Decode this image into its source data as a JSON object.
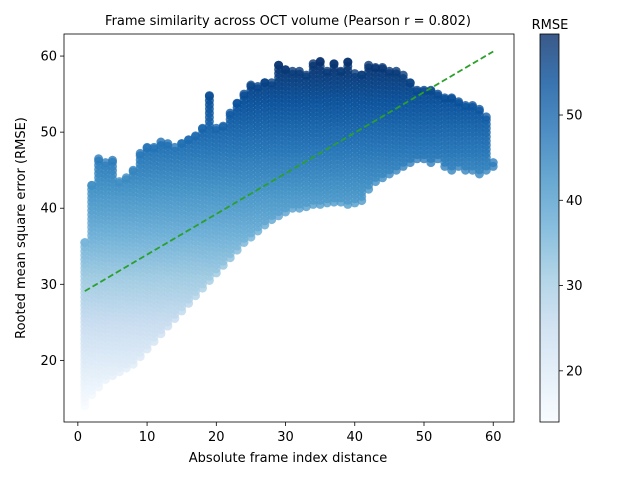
{
  "chart_data": {
    "type": "scatter",
    "title": "Frame similarity across OCT volume (Pearson r = 0.802)",
    "xlabel": "Absolute frame index distance",
    "ylabel": "Rooted mean square error (RMSE)",
    "xlim": [
      -2.0,
      63.0
    ],
    "ylim": [
      11.9,
      62.9
    ],
    "xticks": [
      0,
      10,
      20,
      30,
      40,
      50,
      60
    ],
    "yticks": [
      20,
      30,
      40,
      50,
      60
    ],
    "grid": false,
    "colormap": "Blues",
    "color_range": [
      14.0,
      59.5
    ],
    "colorbar": {
      "label": "RMSE",
      "ticks": [
        20,
        30,
        40,
        50
      ]
    },
    "point_alpha": 0.8,
    "x_range": [
      1,
      60
    ],
    "point_bands": [
      {
        "x": 1,
        "min": 14,
        "max": 35.5
      },
      {
        "x": 2,
        "min": 15.5,
        "max": 43
      },
      {
        "x": 3,
        "min": 16.5,
        "max": 46.5
      },
      {
        "x": 4,
        "min": 17.5,
        "max": 46
      },
      {
        "x": 5,
        "min": 18,
        "max": 46.3
      },
      {
        "x": 6,
        "min": 18.5,
        "max": 43.5
      },
      {
        "x": 7,
        "min": 19,
        "max": 44
      },
      {
        "x": 8,
        "min": 19.5,
        "max": 45
      },
      {
        "x": 9,
        "min": 20.5,
        "max": 47.2
      },
      {
        "x": 10,
        "min": 21.5,
        "max": 48
      },
      {
        "x": 11,
        "min": 22.5,
        "max": 48
      },
      {
        "x": 12,
        "min": 23.5,
        "max": 48.7
      },
      {
        "x": 13,
        "min": 24.5,
        "max": 48.5
      },
      {
        "x": 14,
        "min": 25.5,
        "max": 48
      },
      {
        "x": 15,
        "min": 26.5,
        "max": 48.5
      },
      {
        "x": 16,
        "min": 27.5,
        "max": 49
      },
      {
        "x": 17,
        "min": 28.5,
        "max": 49.5
      },
      {
        "x": 18,
        "min": 29.5,
        "max": 50.5
      },
      {
        "x": 19,
        "min": 30.5,
        "max": 54.8
      },
      {
        "x": 20,
        "min": 31.5,
        "max": 50.5
      },
      {
        "x": 21,
        "min": 32.5,
        "max": 50.8
      },
      {
        "x": 22,
        "min": 33.5,
        "max": 52.5
      },
      {
        "x": 23,
        "min": 34.5,
        "max": 53.8
      },
      {
        "x": 24,
        "min": 35.5,
        "max": 55
      },
      {
        "x": 25,
        "min": 36.2,
        "max": 56.2
      },
      {
        "x": 26,
        "min": 37,
        "max": 56
      },
      {
        "x": 27,
        "min": 37.8,
        "max": 56.5
      },
      {
        "x": 28,
        "min": 38.5,
        "max": 56.5
      },
      {
        "x": 29,
        "min": 39,
        "max": 58.8
      },
      {
        "x": 30,
        "min": 39.5,
        "max": 58.2
      },
      {
        "x": 31,
        "min": 40,
        "max": 58
      },
      {
        "x": 32,
        "min": 40,
        "max": 58
      },
      {
        "x": 33,
        "min": 40.2,
        "max": 57.5
      },
      {
        "x": 34,
        "min": 40.5,
        "max": 59
      },
      {
        "x": 35,
        "min": 40.5,
        "max": 59.3
      },
      {
        "x": 36,
        "min": 40.7,
        "max": 58
      },
      {
        "x": 37,
        "min": 40.8,
        "max": 59
      },
      {
        "x": 38,
        "min": 40.8,
        "max": 58
      },
      {
        "x": 39,
        "min": 40.5,
        "max": 59.2
      },
      {
        "x": 40,
        "min": 40.7,
        "max": 57.7
      },
      {
        "x": 41,
        "min": 41,
        "max": 57.5
      },
      {
        "x": 42,
        "min": 42.5,
        "max": 58.8
      },
      {
        "x": 43,
        "min": 43.5,
        "max": 58.5
      },
      {
        "x": 44,
        "min": 44,
        "max": 58.5
      },
      {
        "x": 45,
        "min": 44.5,
        "max": 58
      },
      {
        "x": 46,
        "min": 45,
        "max": 58
      },
      {
        "x": 47,
        "min": 45.5,
        "max": 57.5
      },
      {
        "x": 48,
        "min": 46,
        "max": 56.5
      },
      {
        "x": 49,
        "min": 46.5,
        "max": 55.5
      },
      {
        "x": 50,
        "min": 46.5,
        "max": 55.5
      },
      {
        "x": 51,
        "min": 46,
        "max": 55.5
      },
      {
        "x": 52,
        "min": 46.5,
        "max": 55
      },
      {
        "x": 53,
        "min": 45.5,
        "max": 54.5
      },
      {
        "x": 54,
        "min": 45,
        "max": 54.5
      },
      {
        "x": 55,
        "min": 45.5,
        "max": 54
      },
      {
        "x": 56,
        "min": 45,
        "max": 53.5
      },
      {
        "x": 57,
        "min": 45,
        "max": 53.5
      },
      {
        "x": 58,
        "min": 44.5,
        "max": 53
      },
      {
        "x": 59,
        "min": 45,
        "max": 52
      },
      {
        "x": 60,
        "min": 45.5,
        "max": 46
      }
    ],
    "trend_line": {
      "x": [
        1,
        60
      ],
      "y": [
        29.1,
        60.6
      ],
      "color": "#2ca02c",
      "style": "dashed"
    }
  }
}
